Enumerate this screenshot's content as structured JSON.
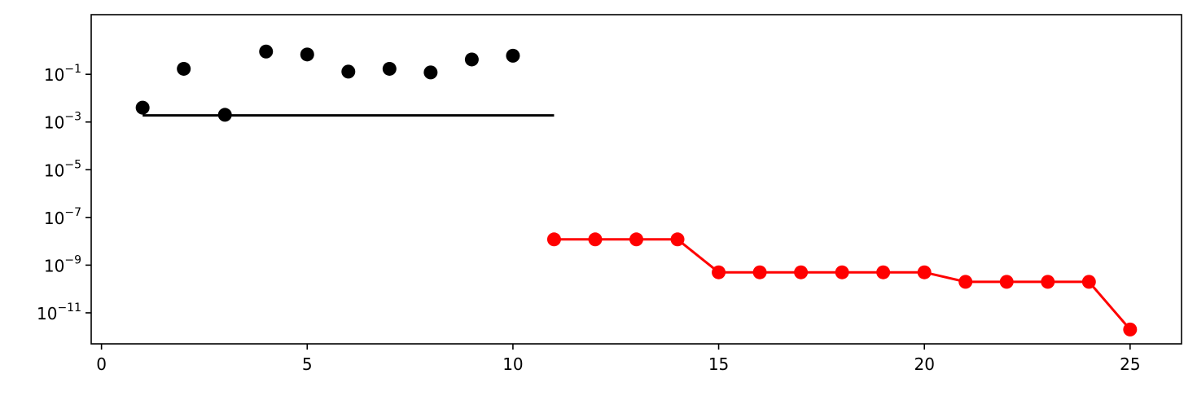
{
  "chart_data": {
    "type": "scatter",
    "title": "",
    "xlabel": "",
    "ylabel": "",
    "xlim": [
      -0.25,
      26.25
    ],
    "ylim_exponent": [
      -12.3,
      1.5
    ],
    "y_scale": "log",
    "grid": false,
    "legend": "none",
    "x_ticks": [
      {
        "value": 0,
        "label": "0"
      },
      {
        "value": 5,
        "label": "5"
      },
      {
        "value": 10,
        "label": "10"
      },
      {
        "value": 15,
        "label": "15"
      },
      {
        "value": 20,
        "label": "20"
      },
      {
        "value": 25,
        "label": "25"
      }
    ],
    "y_ticks": [
      {
        "exponent": -1,
        "base": "10",
        "exp_label": "−1"
      },
      {
        "exponent": -3,
        "base": "10",
        "exp_label": "−3"
      },
      {
        "exponent": -5,
        "base": "10",
        "exp_label": "−5"
      },
      {
        "exponent": -7,
        "base": "10",
        "exp_label": "−7"
      },
      {
        "exponent": -9,
        "base": "10",
        "exp_label": "−9"
      },
      {
        "exponent": -11,
        "base": "10",
        "exp_label": "−11"
      }
    ],
    "series": [
      {
        "color": "#000000",
        "style": "markers",
        "x": [
          1,
          2,
          3,
          4,
          5,
          6,
          7,
          8,
          9,
          10
        ],
        "y": [
          0.004,
          0.17,
          0.002,
          0.9,
          0.68,
          0.13,
          0.17,
          0.12,
          0.42,
          0.6
        ]
      },
      {
        "color": "#000000",
        "style": "line",
        "x": [
          1,
          11
        ],
        "y": [
          0.0019,
          0.0019
        ]
      },
      {
        "color": "#ff0000",
        "style": "line-markers",
        "x": [
          11,
          12,
          13,
          14,
          15,
          16,
          17,
          18,
          19,
          20,
          21,
          22,
          23,
          24,
          25
        ],
        "y": [
          1.2e-08,
          1.2e-08,
          1.2e-08,
          1.2e-08,
          5e-10,
          5e-10,
          5e-10,
          5e-10,
          5e-10,
          5e-10,
          2e-10,
          2e-10,
          2e-10,
          2e-10,
          2e-12
        ]
      }
    ]
  }
}
